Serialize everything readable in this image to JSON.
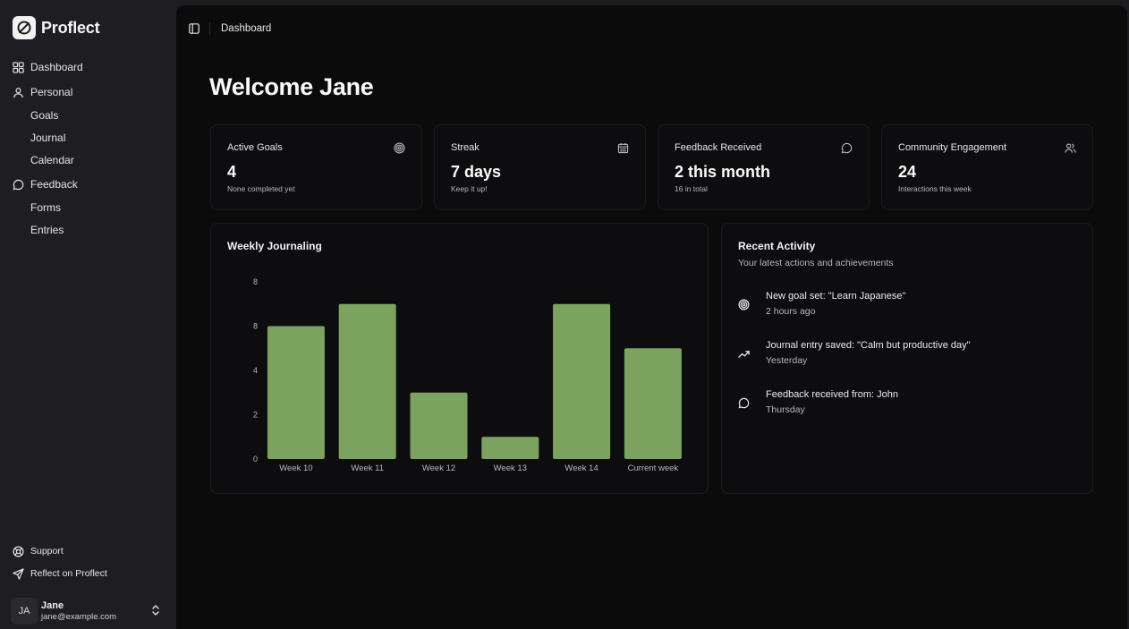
{
  "brand": {
    "name": "Proflect"
  },
  "sidebar": {
    "dashboard": "Dashboard",
    "personal": "Personal",
    "personal_items": [
      "Goals",
      "Journal",
      "Calendar"
    ],
    "feedback": "Feedback",
    "feedback_items": [
      "Forms",
      "Entries"
    ],
    "support": "Support",
    "reflect": "Reflect on Proflect",
    "user": {
      "initials": "JA",
      "name": "Jane",
      "email": "jane@example.com"
    }
  },
  "topbar": {
    "breadcrumb": "Dashboard"
  },
  "main": {
    "welcome": "Welcome Jane",
    "cards": [
      {
        "title": "Active Goals",
        "value": "4",
        "sub": "None completed yet",
        "icon": "target-icon"
      },
      {
        "title": "Streak",
        "value": "7 days",
        "sub": "Keep it up!",
        "icon": "calendar-icon"
      },
      {
        "title": "Feedback Received",
        "value": "2 this month",
        "sub": "16 in total",
        "icon": "message-circle-icon"
      },
      {
        "title": "Community Engagement",
        "value": "24",
        "sub": "Interactions this week",
        "icon": "users-icon"
      }
    ],
    "journaling": {
      "title": "Weekly Journaling"
    },
    "recent": {
      "title": "Recent Activity",
      "subtitle": "Your latest actions and achievements",
      "items": [
        {
          "icon": "target-icon",
          "text": "New goal set: \"Learn Japanese\"",
          "time": "2 hours ago"
        },
        {
          "icon": "trending-up-icon",
          "text": "Journal entry saved: \"Calm but productive day\"",
          "time": "Yesterday"
        },
        {
          "icon": "message-circle-icon",
          "text": "Feedback received from: John",
          "time": "Thursday"
        }
      ]
    }
  },
  "colors": {
    "bar": "#7ba35f",
    "background": "#0b0b0c",
    "sidebar": "#1e1e22"
  },
  "chart_data": {
    "type": "bar",
    "title": "Weekly Journaling",
    "categories": [
      "Week 10",
      "Week 11",
      "Week 12",
      "Week 13",
      "Week 14",
      "Current week"
    ],
    "values": [
      6,
      7,
      3,
      1,
      7,
      5
    ],
    "yticks": [
      "0",
      "2",
      "4",
      "8",
      "8"
    ],
    "ylim": [
      0,
      8
    ],
    "grid": false
  }
}
